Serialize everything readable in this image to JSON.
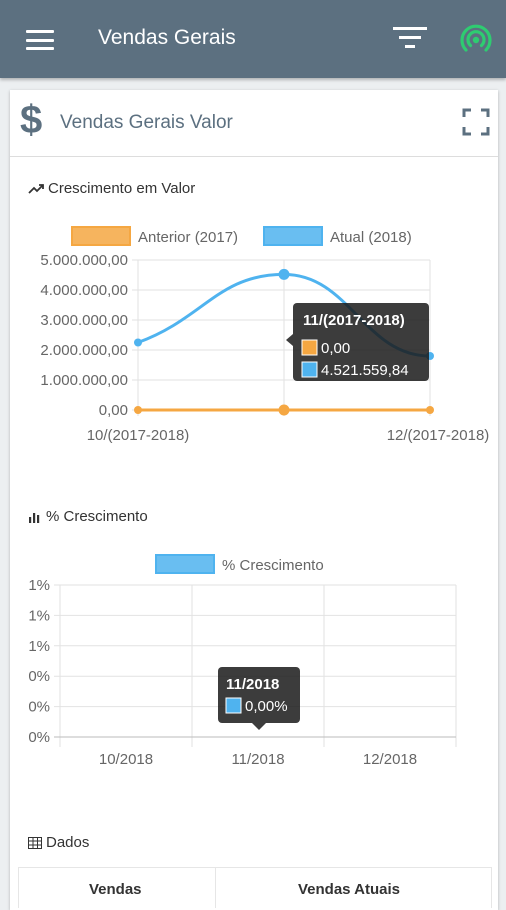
{
  "appbar": {
    "title": "Vendas Gerais",
    "menu_icon": "menu-icon",
    "filter_icon": "filter-icon",
    "signal_icon": "signal-icon",
    "signal_color": "#2ecc71"
  },
  "card": {
    "title": "Vendas Gerais Valor",
    "symbol": "$"
  },
  "sections": {
    "growth_value": "Crescimento em Valor",
    "growth_percent": "% Crescimento",
    "data": "Dados"
  },
  "chart_data": [
    {
      "type": "line",
      "title": "Crescimento em Valor",
      "categories": [
        "10/(2017-2018)",
        "11/(2017-2018)",
        "12/(2017-2018)"
      ],
      "x_tick_labels": [
        "10/(2017-2018)",
        "12/(2017-2018)"
      ],
      "series": [
        {
          "name": "Anterior (2017)",
          "values": [
            0,
            0,
            0
          ],
          "color": "#f5a742"
        },
        {
          "name": "Atual (2018)",
          "values": [
            2250000,
            4521559.84,
            1800000
          ],
          "color": "#4fb3ef"
        }
      ],
      "y_ticks": [
        "5.000.000,00",
        "4.000.000,00",
        "3.000.000,00",
        "2.000.000,00",
        "1.000.000,00",
        "0,00"
      ],
      "ylim": [
        0,
        5000000
      ],
      "legend": "top",
      "grid": true,
      "tooltip": {
        "title": "11/(2017-2018)",
        "values": [
          "0,00",
          "4.521.559,84"
        ]
      }
    },
    {
      "type": "bar",
      "title": "% Crescimento",
      "categories": [
        "10/2018",
        "11/2018",
        "12/2018"
      ],
      "series": [
        {
          "name": "% Crescimento",
          "values": [
            0,
            0,
            0
          ],
          "color": "#4fb3ef"
        }
      ],
      "y_ticks": [
        "1%",
        "1%",
        "1%",
        "0%",
        "0%",
        "0%"
      ],
      "legend": "top",
      "grid": true,
      "tooltip": {
        "title": "11/2018",
        "values": [
          "0,00%"
        ]
      }
    }
  ],
  "table": {
    "headers": [
      "Vendas",
      "Vendas Atuais"
    ]
  }
}
